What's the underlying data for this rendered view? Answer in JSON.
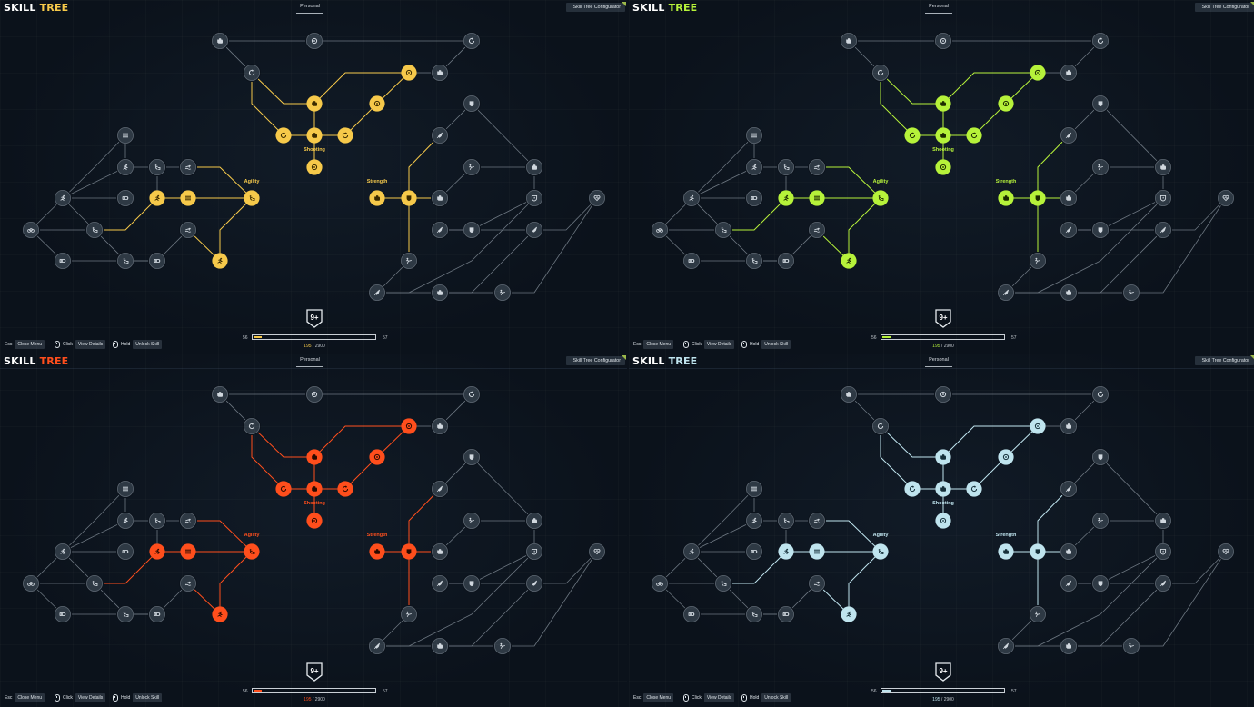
{
  "app": {
    "logo_skill": "SKILL",
    "logo_tree": "TREE",
    "tab_personal": "Personal",
    "configurator_label": "Skill Tree Configurator"
  },
  "labels": {
    "shooting": "Shooting",
    "agility": "Agility",
    "strength": "Strength"
  },
  "progress": {
    "level": "9+",
    "xp_min": "56",
    "xp_max": "57",
    "xp_current": "195",
    "xp_total": "2900",
    "xp_fraction": 0.067
  },
  "hints": {
    "esc_key": "Esc",
    "esc_action": "Close Menu",
    "click_key": "Click",
    "click_action": "View Details",
    "hold_key": "Hold",
    "hold_action": "Unlock Skill"
  },
  "themes": [
    {
      "name": "yellow",
      "accent": "#f6c94a",
      "node_glyph": "#3a2a00"
    },
    {
      "name": "green",
      "accent": "#b6f23a",
      "node_glyph": "#1d2b00"
    },
    {
      "name": "orange",
      "accent": "#ff4e1c",
      "node_glyph": "#2a0a00"
    },
    {
      "name": "ice",
      "accent": "#bfe4ee",
      "node_glyph": "#16303a"
    }
  ],
  "node_colors": {
    "inactive_fill": "#2e3944",
    "inactive_glyph": "#d0d7de",
    "edge_inactive": "#6c7680"
  }
}
